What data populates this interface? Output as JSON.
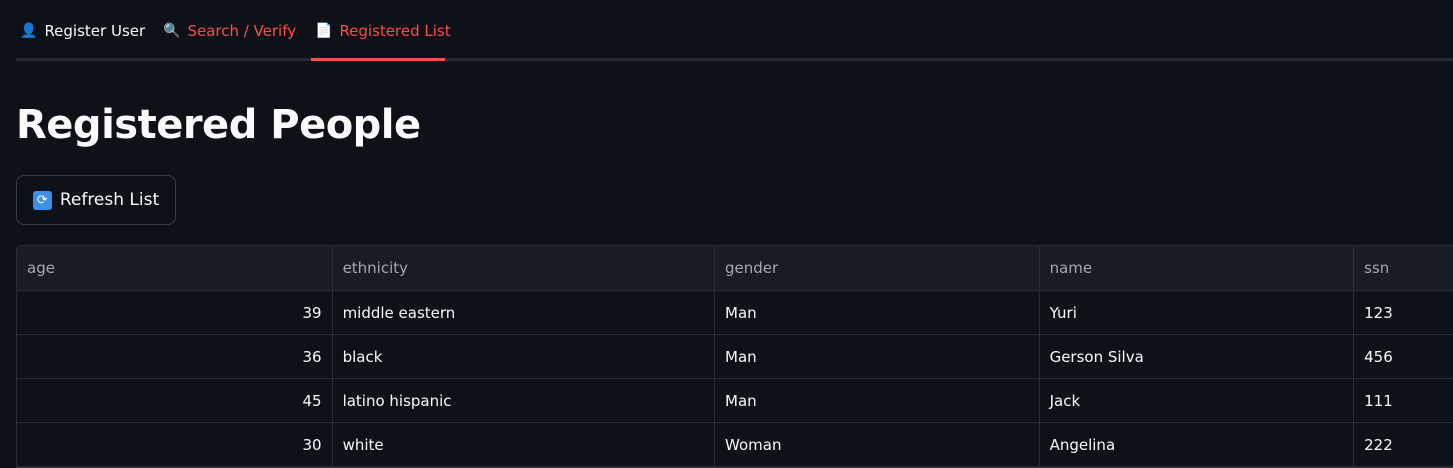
{
  "tabs": [
    {
      "icon": "user-icon",
      "label": "Register User"
    },
    {
      "icon": "magnifier-icon",
      "label": "Search / Verify"
    },
    {
      "icon": "document-icon",
      "label": "Registered List",
      "active": true
    }
  ],
  "accent": "#ff4b4b",
  "title": "Registered People",
  "refresh_button": {
    "icon": "refresh-icon",
    "label": "Refresh List"
  },
  "table": {
    "columns": [
      "age",
      "ethnicity",
      "gender",
      "name",
      "ssn"
    ],
    "rows": [
      [
        "39",
        "middle eastern",
        "Man",
        "Yuri",
        "123"
      ],
      [
        "36",
        "black",
        "Man",
        "Gerson Silva",
        "456"
      ],
      [
        "45",
        "latino hispanic",
        "Man",
        "Jack",
        "111"
      ],
      [
        "30",
        "white",
        "Woman",
        "Angelina",
        "222"
      ]
    ]
  }
}
